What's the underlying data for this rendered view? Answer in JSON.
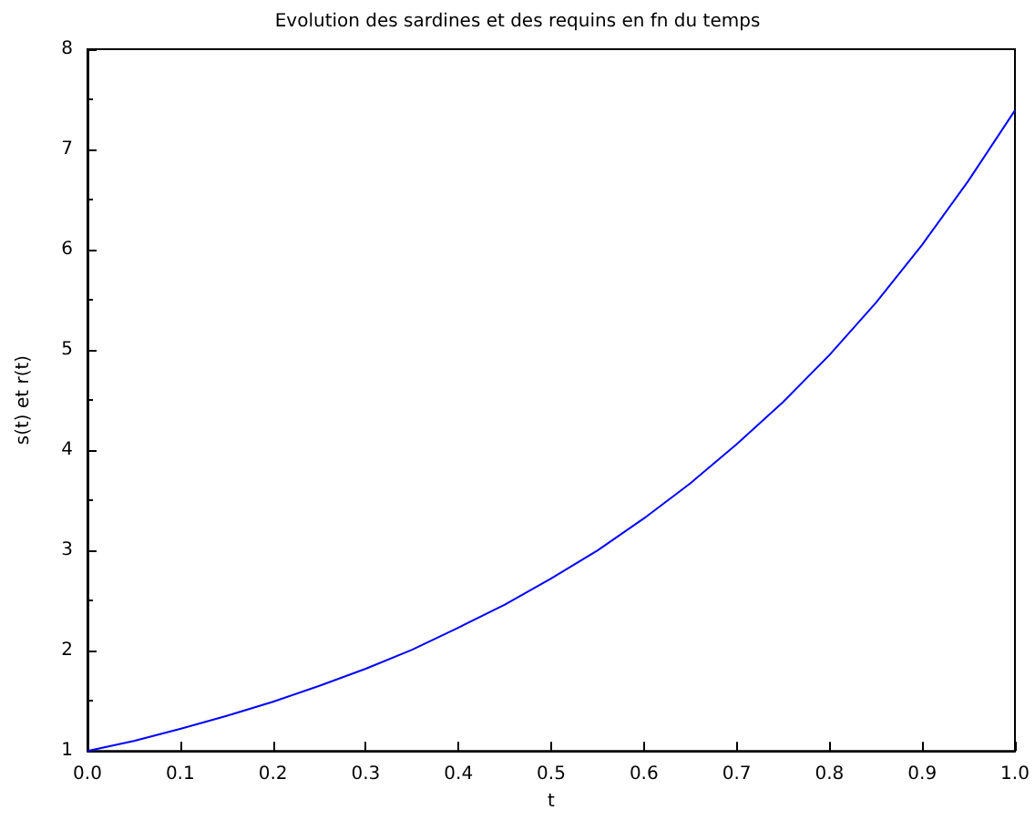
{
  "chart_data": {
    "type": "line",
    "title": "Evolution des sardines et des requins en fn du temps",
    "xlabel": "t",
    "ylabel": "s(t) et r(t)",
    "x": [
      0,
      0.05,
      0.1,
      0.15,
      0.2,
      0.25,
      0.3,
      0.35,
      0.4,
      0.45,
      0.5,
      0.55,
      0.6,
      0.65,
      0.7,
      0.75,
      0.8,
      0.85,
      0.9,
      0.95,
      1
    ],
    "series": [
      {
        "color": "#0000ff",
        "values": [
          1,
          1.1,
          1.22,
          1.35,
          1.49,
          1.65,
          1.82,
          2.01,
          2.23,
          2.46,
          2.72,
          3.0,
          3.32,
          3.67,
          4.06,
          4.48,
          4.95,
          5.47,
          6.05,
          6.69,
          7.39
        ]
      }
    ],
    "xlim": [
      0,
      1
    ],
    "xticks": [
      {
        "value": 0,
        "label": "0.0"
      },
      0.1,
      0.2,
      0.3,
      0.4,
      0.5,
      0.6,
      0.7,
      0.8,
      0.9,
      {
        "value": 1,
        "label": "1.0"
      }
    ],
    "ylim": [
      1,
      8
    ],
    "yticks": [
      1,
      2,
      3,
      4,
      5,
      6,
      7,
      8
    ],
    "grid": false,
    "marker": "none",
    "line_style": "solid"
  }
}
